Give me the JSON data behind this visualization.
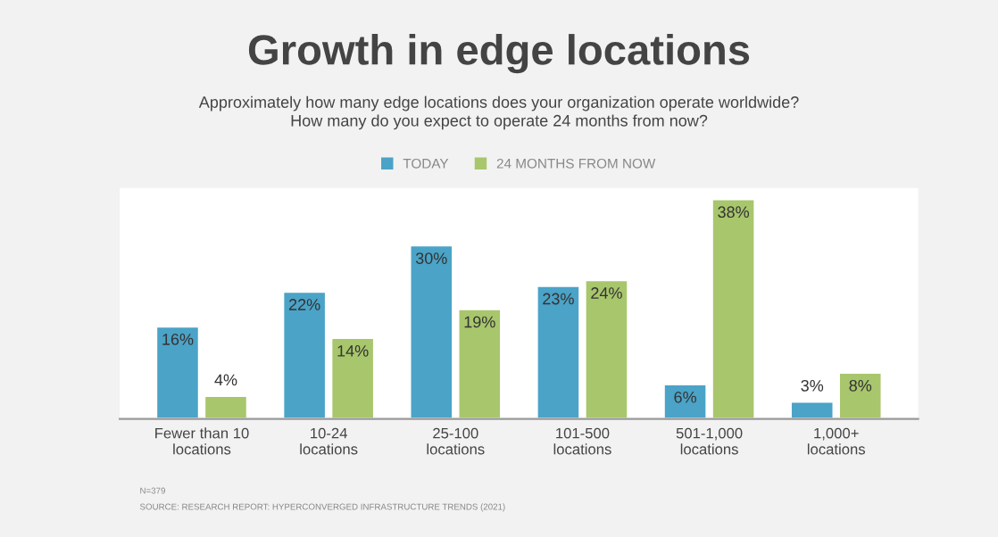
{
  "chart_data": {
    "type": "bar",
    "title": "Growth in edge locations",
    "subtitle": "Approximately how many edge locations does your organization operate worldwide?\nHow many do you expect to operate 24 months from now?",
    "categories": [
      "Fewer than 10\nlocations",
      "10-24\nlocations",
      "25-100\nlocations",
      "101-500\nlocations",
      "501-1,000\nlocations",
      "1,000+\nlocations"
    ],
    "series": [
      {
        "name": "TODAY",
        "color": "#4ba3c7",
        "values": [
          16,
          22,
          30,
          23,
          6,
          3
        ],
        "value_labels": [
          "16%",
          "22%",
          "30%",
          "23%",
          "6%",
          "3%"
        ]
      },
      {
        "name": "24 MONTHS FROM NOW",
        "color": "#a8c66c",
        "values": [
          4,
          14,
          19,
          24,
          38,
          8
        ],
        "value_labels": [
          "4%",
          "14%",
          "19%",
          "24%",
          "38%",
          "8%"
        ]
      }
    ],
    "grid": false,
    "legend": "top",
    "annotations": [
      "N=379",
      "SOURCE: RESEARCH REPORT: HYPERCONVERGED INFRASTRUCTURE TRENDS (2021)"
    ]
  }
}
